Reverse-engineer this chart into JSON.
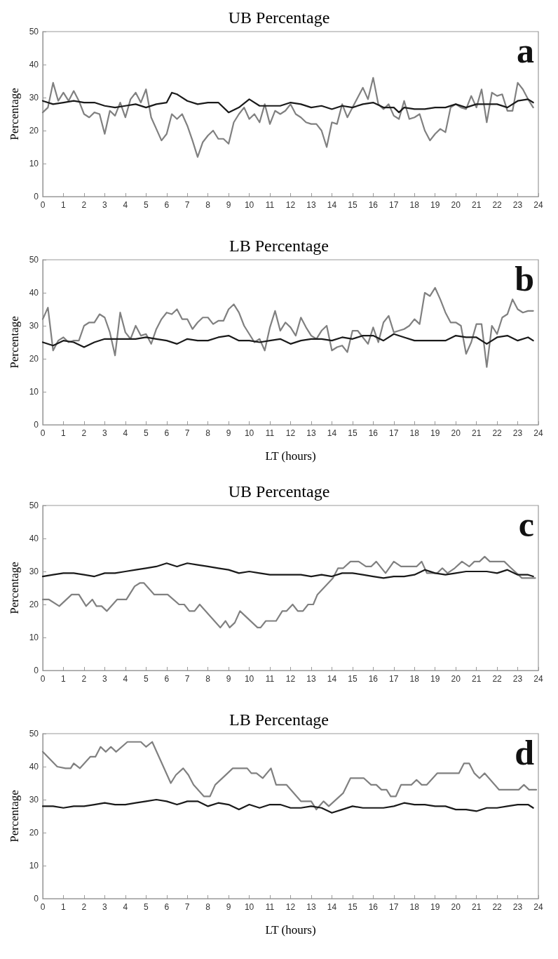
{
  "chart_data": [
    {
      "type": "line",
      "title": "UB Percentage",
      "ylabel": "Percentage",
      "annotations": [
        "a"
      ],
      "xlim": [
        0,
        24
      ],
      "xticks": [
        0,
        1,
        2,
        3,
        4,
        5,
        6,
        7,
        8,
        9,
        10,
        11,
        12,
        13,
        14,
        15,
        16,
        17,
        18,
        19,
        20,
        21,
        22,
        23,
        24
      ],
      "ylim": [
        0,
        50
      ],
      "yticks": [
        0,
        10,
        20,
        30,
        40,
        50
      ],
      "grid": false,
      "marker": "none",
      "line_style": "solid",
      "series": [
        {
          "color": "#808080",
          "x": [
            0,
            0.25,
            0.5,
            0.75,
            1,
            1.25,
            1.5,
            1.75,
            2,
            2.25,
            2.5,
            2.75,
            3,
            3.25,
            3.5,
            3.75,
            4,
            4.25,
            4.5,
            4.75,
            5,
            5.25,
            5.5,
            5.75,
            6,
            6.25,
            6.5,
            6.75,
            7,
            7.25,
            7.5,
            7.75,
            8,
            8.25,
            8.5,
            8.75,
            9,
            9.25,
            9.5,
            9.75,
            10,
            10.25,
            10.5,
            10.75,
            11,
            11.25,
            11.5,
            11.75,
            12,
            12.25,
            12.5,
            12.75,
            13,
            13.25,
            13.5,
            13.75,
            14,
            14.25,
            14.5,
            14.75,
            15,
            15.25,
            15.5,
            15.75,
            16,
            16.25,
            16.5,
            16.75,
            17,
            17.25,
            17.5,
            17.75,
            18,
            18.25,
            18.5,
            18.75,
            19,
            19.25,
            19.5,
            19.75,
            20,
            20.25,
            20.5,
            20.75,
            21,
            21.25,
            21.5,
            21.75,
            22,
            22.25,
            22.5,
            22.75,
            23,
            23.25,
            23.5,
            23.75
          ],
          "values": [
            25.5,
            27,
            34.5,
            29,
            31.5,
            29,
            32,
            29,
            25,
            24,
            25.5,
            25,
            19,
            26,
            24.5,
            28.5,
            24,
            29.5,
            31.5,
            28.5,
            32.5,
            24,
            20.5,
            17,
            19,
            25,
            23.5,
            25,
            21.5,
            17,
            12,
            16.5,
            18.5,
            20,
            17.5,
            17.5,
            16,
            22.5,
            25,
            27,
            23.5,
            25,
            22.5,
            28,
            22,
            26,
            25,
            26,
            28,
            25,
            24,
            22.5,
            22,
            22,
            20,
            15,
            22.5,
            22,
            28,
            24,
            27,
            30,
            33,
            29.5,
            36,
            28,
            26.5,
            28,
            24.5,
            23.5,
            29,
            23.5,
            24,
            25,
            20,
            17,
            19,
            20.5,
            19.5,
            27,
            28,
            27,
            26.5,
            30.5,
            27,
            32.5,
            22.5,
            31.5,
            30.5,
            31,
            26,
            26,
            34.5,
            32.5,
            29.5,
            27
          ]
        },
        {
          "color": "#1a1a1a",
          "x": [
            0,
            0.5,
            1,
            1.5,
            2,
            2.5,
            3,
            3.5,
            4,
            4.5,
            5,
            5.5,
            6,
            6.25,
            6.5,
            7,
            7.5,
            8,
            8.5,
            9,
            9.5,
            10,
            10.5,
            11,
            11.5,
            12,
            12.5,
            13,
            13.5,
            14,
            14.5,
            15,
            15.5,
            16,
            16.5,
            17,
            17.25,
            17.5,
            18,
            18.5,
            19,
            19.5,
            20,
            20.5,
            21,
            21.5,
            22,
            22.5,
            23,
            23.5,
            23.75
          ],
          "values": [
            29,
            28,
            28.5,
            29,
            28.5,
            28.5,
            27.5,
            27,
            27.5,
            28,
            27,
            28,
            28.5,
            31.5,
            31,
            29,
            28,
            28.5,
            28.5,
            25.5,
            27,
            29.5,
            27.5,
            27.5,
            27.5,
            28.5,
            28,
            27,
            27.5,
            26.5,
            27.5,
            27,
            28,
            28.5,
            27,
            27,
            25.5,
            27,
            26.5,
            26.5,
            27,
            27,
            28,
            27,
            28,
            28,
            28,
            27,
            29,
            29.5,
            28.5
          ]
        }
      ]
    },
    {
      "type": "line",
      "title": "LB Percentage",
      "xlabel": "LT (hours)",
      "ylabel": "Percentage",
      "annotations": [
        "b"
      ],
      "xlim": [
        0,
        24
      ],
      "xticks": [
        0,
        1,
        2,
        3,
        4,
        5,
        6,
        7,
        8,
        9,
        10,
        11,
        12,
        13,
        14,
        15,
        16,
        17,
        18,
        19,
        20,
        21,
        22,
        23,
        24
      ],
      "ylim": [
        0,
        50
      ],
      "yticks": [
        0,
        10,
        20,
        30,
        40,
        50
      ],
      "grid": false,
      "marker": "none",
      "line_style": "solid",
      "series": [
        {
          "color": "#808080",
          "x": [
            0,
            0.25,
            0.5,
            0.75,
            1,
            1.25,
            1.5,
            1.75,
            2,
            2.25,
            2.5,
            2.75,
            3,
            3.25,
            3.5,
            3.75,
            4,
            4.25,
            4.5,
            4.75,
            5,
            5.25,
            5.5,
            5.75,
            6,
            6.25,
            6.5,
            6.75,
            7,
            7.25,
            7.5,
            7.75,
            8,
            8.25,
            8.5,
            8.75,
            9,
            9.25,
            9.5,
            9.75,
            10,
            10.25,
            10.5,
            10.75,
            11,
            11.25,
            11.5,
            11.75,
            12,
            12.25,
            12.5,
            12.75,
            13,
            13.25,
            13.5,
            13.75,
            14,
            14.25,
            14.5,
            14.75,
            15,
            15.25,
            15.5,
            15.75,
            16,
            16.25,
            16.5,
            16.75,
            17,
            17.25,
            17.5,
            17.75,
            18,
            18.25,
            18.5,
            18.75,
            19,
            19.25,
            19.5,
            19.75,
            20,
            20.25,
            20.5,
            20.75,
            21,
            21.25,
            21.5,
            21.75,
            22,
            22.25,
            22.5,
            22.75,
            23,
            23.25,
            23.5,
            23.75
          ],
          "values": [
            32,
            35.5,
            22.5,
            25.5,
            26.5,
            25,
            25.5,
            25.5,
            30,
            31,
            31,
            33.5,
            32.5,
            28,
            21,
            34,
            28,
            26,
            30,
            27,
            27.5,
            24.5,
            29,
            32,
            34,
            33.5,
            35,
            32,
            32,
            29,
            31,
            32.5,
            32.5,
            30.5,
            31.5,
            31.5,
            35,
            36.5,
            34,
            30,
            27.5,
            25,
            26,
            22.5,
            29.5,
            34.5,
            28.5,
            31,
            29.5,
            27,
            32.5,
            29.5,
            27,
            26,
            28.5,
            30,
            22.5,
            23.5,
            24,
            22,
            28.5,
            28.5,
            26.5,
            24.5,
            29.5,
            25,
            31,
            33,
            28,
            28.5,
            29,
            30,
            32,
            30.5,
            40,
            39,
            41.5,
            38,
            34,
            31,
            31,
            30,
            21.5,
            25,
            30.5,
            30.5,
            17.5,
            30,
            27.5,
            32.5,
            33.5,
            38,
            35,
            34,
            34.5,
            34.5
          ]
        },
        {
          "color": "#1a1a1a",
          "x": [
            0,
            0.5,
            1,
            1.5,
            2,
            2.5,
            3,
            3.5,
            4,
            4.5,
            5,
            5.5,
            6,
            6.5,
            7,
            7.5,
            8,
            8.5,
            9,
            9.5,
            10,
            10.5,
            11,
            11.5,
            12,
            12.5,
            13,
            13.5,
            14,
            14.5,
            15,
            15.5,
            16,
            16.5,
            17,
            17.5,
            18,
            18.5,
            19,
            19.5,
            20,
            20.5,
            21,
            21.5,
            22,
            22.5,
            23,
            23.5,
            23.75
          ],
          "values": [
            25,
            24,
            25.5,
            25,
            23.5,
            25,
            26,
            26,
            26,
            26,
            26.5,
            26,
            25.5,
            24.5,
            26,
            25.5,
            25.5,
            26.5,
            27,
            25.5,
            25.5,
            25,
            25.5,
            26,
            24.5,
            25.5,
            26,
            26,
            25.5,
            26.5,
            26,
            27,
            27,
            25.5,
            27.5,
            26.5,
            25.5,
            25.5,
            25.5,
            25.5,
            27,
            26.5,
            26.5,
            24.5,
            26.5,
            27,
            25.5,
            26.5,
            25.5
          ]
        }
      ]
    },
    {
      "type": "line",
      "title": "UB Percentage",
      "ylabel": "Percentage",
      "annotations": [
        "c"
      ],
      "xlim": [
        0,
        24
      ],
      "xticks": [
        0,
        1,
        2,
        3,
        4,
        5,
        6,
        7,
        8,
        9,
        10,
        11,
        12,
        13,
        14,
        15,
        16,
        17,
        18,
        19,
        20,
        21,
        22,
        23,
        24
      ],
      "ylim": [
        0,
        50
      ],
      "yticks": [
        0,
        10,
        20,
        30,
        40,
        50
      ],
      "grid": false,
      "marker": "none",
      "line_style": "solid",
      "series": [
        {
          "color": "#808080",
          "x": [
            0,
            0.3,
            0.8,
            1.4,
            1.75,
            2.1,
            2.4,
            2.6,
            2.85,
            3.1,
            3.6,
            4.05,
            4.45,
            4.7,
            4.9,
            5.4,
            6.05,
            6.6,
            6.85,
            7.1,
            7.35,
            7.6,
            8.6,
            8.85,
            9.05,
            9.3,
            9.55,
            10.4,
            10.55,
            10.8,
            11.3,
            11.6,
            11.8,
            12.1,
            12.35,
            12.6,
            12.85,
            13.1,
            13.3,
            14.05,
            14.3,
            14.55,
            14.9,
            15.3,
            15.65,
            15.9,
            16.15,
            16.6,
            17,
            17.35,
            18.1,
            18.35,
            18.6,
            19.1,
            19.35,
            19.6,
            19.95,
            20.3,
            20.65,
            20.9,
            21.15,
            21.4,
            21.65,
            22.35,
            22.6,
            23.2,
            23.85
          ],
          "values": [
            21.5,
            21.5,
            19.5,
            23,
            23,
            19.5,
            21.5,
            19.5,
            19.5,
            18,
            21.5,
            21.5,
            25.5,
            26.5,
            26.5,
            23,
            23,
            20,
            20,
            18,
            18,
            20,
            13,
            15,
            13,
            14.5,
            18,
            13,
            13,
            15,
            15,
            18,
            18,
            20,
            18,
            18,
            20,
            20,
            23,
            28,
            31,
            31,
            33,
            33,
            31.5,
            31.5,
            33,
            29.5,
            33,
            31.5,
            31.5,
            33,
            29.5,
            29.5,
            31,
            29.5,
            31,
            33,
            31.5,
            33,
            33,
            34.5,
            33,
            33,
            31.5,
            28,
            28
          ]
        },
        {
          "color": "#1a1a1a",
          "x": [
            0,
            0.5,
            1,
            1.5,
            2,
            2.5,
            3,
            3.5,
            4,
            4.5,
            5,
            5.5,
            6,
            6.5,
            7,
            7.5,
            8,
            8.5,
            9,
            9.5,
            10,
            10.5,
            11,
            11.5,
            12,
            12.5,
            13,
            13.5,
            14,
            14.5,
            15,
            15.5,
            16,
            16.5,
            17,
            17.5,
            18,
            18.5,
            19,
            19.5,
            20,
            20.5,
            21,
            21.5,
            22,
            22.5,
            23,
            23.5,
            23.75
          ],
          "values": [
            28.5,
            29,
            29.5,
            29.5,
            29,
            28.5,
            29.5,
            29.5,
            30,
            30.5,
            31,
            31.5,
            32.5,
            31.5,
            32.5,
            32,
            31.5,
            31,
            30.5,
            29.5,
            30,
            29.5,
            29,
            29,
            29,
            29,
            28.5,
            29,
            28.5,
            29.5,
            29.5,
            29,
            28.5,
            28,
            28.5,
            28.5,
            29,
            30.5,
            29.5,
            29,
            29.5,
            30,
            30,
            30,
            29.5,
            30.5,
            29,
            29,
            28.5
          ]
        }
      ]
    },
    {
      "type": "line",
      "title": "LB Percentage",
      "xlabel": "LT (hours)",
      "ylabel": "Percentage",
      "annotations": [
        "d"
      ],
      "xlim": [
        0,
        24
      ],
      "xticks": [
        0,
        1,
        2,
        3,
        4,
        5,
        6,
        7,
        8,
        9,
        10,
        11,
        12,
        13,
        14,
        15,
        16,
        17,
        18,
        19,
        20,
        21,
        22,
        23,
        24
      ],
      "ylim": [
        0,
        50
      ],
      "yticks": [
        0,
        10,
        20,
        30,
        40,
        50
      ],
      "grid": false,
      "marker": "none",
      "line_style": "solid",
      "series": [
        {
          "color": "#808080",
          "x": [
            0,
            0.7,
            1.1,
            1.35,
            1.5,
            1.8,
            2.3,
            2.55,
            2.8,
            3.05,
            3.3,
            3.55,
            4.1,
            4.75,
            5,
            5.3,
            6.2,
            6.45,
            6.8,
            7.05,
            7.3,
            7.8,
            8.1,
            8.35,
            8.95,
            9.2,
            9.9,
            10.1,
            10.35,
            10.65,
            11.05,
            11.3,
            11.8,
            12.5,
            13,
            13.25,
            13.6,
            13.85,
            14.55,
            14.9,
            15.55,
            15.9,
            16.15,
            16.4,
            16.65,
            16.85,
            17.1,
            17.35,
            17.85,
            18.1,
            18.35,
            18.6,
            19.1,
            20.15,
            20.4,
            20.65,
            20.9,
            21.15,
            21.4,
            22.1,
            23.05,
            23.3,
            23.55,
            23.9
          ],
          "values": [
            44.5,
            40,
            39.5,
            39.5,
            41,
            39.5,
            43,
            43,
            46,
            44.5,
            46,
            44.5,
            47.5,
            47.5,
            46,
            47.5,
            35,
            37.5,
            39.5,
            37.5,
            34.5,
            31,
            31,
            34.5,
            38,
            39.5,
            39.5,
            38,
            38,
            36.5,
            39.5,
            34.5,
            34.5,
            29.5,
            29.5,
            27,
            29.5,
            28,
            32,
            36.5,
            36.5,
            34.5,
            34.5,
            33,
            33,
            31,
            31,
            34.5,
            34.5,
            36,
            34.5,
            34.5,
            38,
            38,
            41,
            41,
            38,
            36.5,
            38,
            33,
            33,
            34.5,
            33,
            33
          ]
        },
        {
          "color": "#1a1a1a",
          "x": [
            0,
            0.5,
            1,
            1.5,
            2,
            2.5,
            3,
            3.5,
            4,
            4.5,
            5,
            5.5,
            6,
            6.5,
            7,
            7.5,
            8,
            8.5,
            9,
            9.5,
            10,
            10.5,
            11,
            11.5,
            12,
            12.5,
            13,
            13.5,
            14,
            14.5,
            15,
            15.5,
            16,
            16.5,
            17,
            17.5,
            18,
            18.5,
            19,
            19.5,
            20,
            20.5,
            21,
            21.5,
            22,
            22.5,
            23,
            23.5,
            23.75
          ],
          "values": [
            28,
            28,
            27.5,
            28,
            28,
            28.5,
            29,
            28.5,
            28.5,
            29,
            29.5,
            30,
            29.5,
            28.5,
            29.5,
            29.5,
            28,
            29,
            28.5,
            27,
            28.5,
            27.5,
            28.5,
            28.5,
            27.5,
            27.5,
            28,
            27.5,
            26,
            27,
            28,
            27.5,
            27.5,
            27.5,
            28,
            29,
            28.5,
            28.5,
            28,
            28,
            27,
            27,
            26.5,
            27.5,
            27.5,
            28,
            28.5,
            28.5,
            27.5
          ]
        }
      ]
    }
  ]
}
